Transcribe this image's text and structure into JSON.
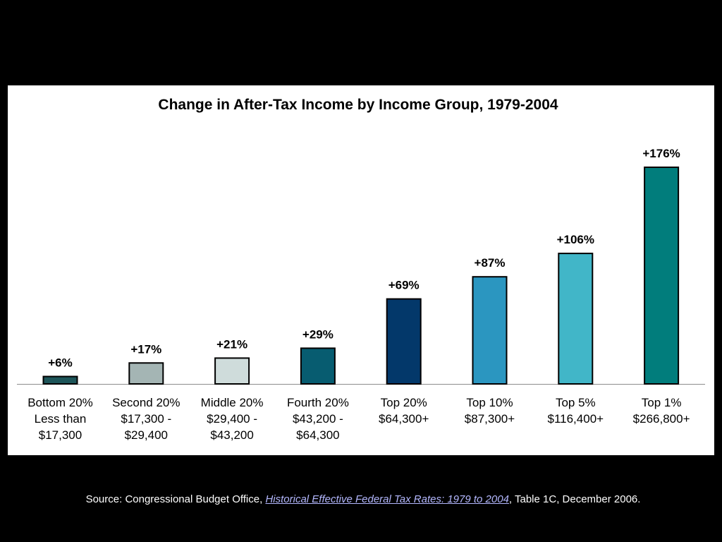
{
  "chart_data": {
    "type": "bar",
    "title": "Change in After-Tax Income by Income Group, 1979-2004",
    "categories": [
      [
        "Bottom 20%",
        "Less than",
        "$17,300"
      ],
      [
        "Second 20%",
        "$17,300 -",
        "$29,400"
      ],
      [
        "Middle 20%",
        "$29,400 -",
        "$43,200"
      ],
      [
        "Fourth 20%",
        "$43,200 -",
        "$64,300"
      ],
      [
        "Top 20%",
        "$64,300+"
      ],
      [
        "Top 10%",
        "$87,300+"
      ],
      [
        "Top 5%",
        "$116,400+"
      ],
      [
        "Top 1%",
        "$266,800+"
      ]
    ],
    "values": [
      6,
      17,
      21,
      29,
      69,
      87,
      106,
      176
    ],
    "data_labels": [
      "+6%",
      "+17%",
      "+21%",
      "+29%",
      "+69%",
      "+87%",
      "+106%",
      "+176%"
    ],
    "colors": [
      "#1d5559",
      "#a4b5b4",
      "#cfdcdb",
      "#075c70",
      "#03386a",
      "#2b96c0",
      "#41b6c8",
      "#017d7c"
    ],
    "ylim": [
      0,
      176
    ],
    "grid": false,
    "legend": "none"
  },
  "source": {
    "prefix": "Source: Congressional Budget Office, ",
    "link_text": "Historical Effective Federal Tax Rates: 1979 to 2004",
    "suffix": ", Table 1C, December 2006."
  }
}
